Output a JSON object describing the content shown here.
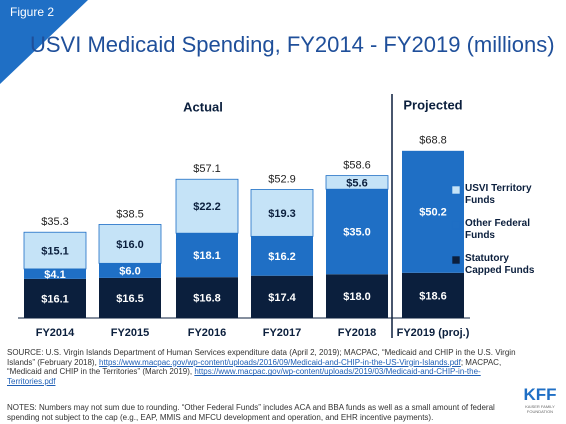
{
  "chart_data": {
    "type": "stacked-bar",
    "figure_label": "Figure 2",
    "title": "USVI Medicaid Spending, FY2014 - FY2019 (millions)",
    "annotations": [
      "Actual",
      "Projected"
    ],
    "categories": [
      "FY2014",
      "FY2015",
      "FY2016",
      "FY2017",
      "FY2018",
      "FY2019 (proj.)"
    ],
    "series": [
      {
        "name": "Statutory Capped Funds",
        "color": "#0b1f3d",
        "label_color": "#ffffff",
        "values": [
          16.1,
          16.5,
          16.8,
          17.4,
          18.0,
          18.6
        ],
        "value_labels": [
          "$16.1",
          "$16.5",
          "$16.8",
          "$17.4",
          "$18.0",
          "$18.6"
        ]
      },
      {
        "name": "Other Federal Funds",
        "color": "#1f6fc5",
        "label_color": "#ffffff",
        "values": [
          4.1,
          6.0,
          18.1,
          16.2,
          35.0,
          50.2
        ],
        "value_labels": [
          "$4.1",
          "$6.0",
          "$18.1",
          "$16.2",
          "$35.0",
          "$50.2"
        ]
      },
      {
        "name": "USVI Territory Funds",
        "color": "#c5e3f7",
        "label_color": "#0b1f3d",
        "values": [
          15.1,
          16.0,
          22.2,
          19.3,
          5.6,
          null
        ],
        "value_labels": [
          "$15.1",
          "$16.0",
          "$22.2",
          "$19.3",
          "$5.6",
          null
        ]
      }
    ],
    "totals": [
      35.3,
      38.5,
      57.1,
      52.9,
      58.6,
      68.8
    ],
    "total_labels": [
      "$35.3",
      "$38.5",
      "$57.1",
      "$52.9",
      "$58.6",
      "$68.8"
    ],
    "source": [
      "SOURCE: U.S. Virgin Islands Department of Human Services expenditure data (April 2, 2019); MACPAC, “Medicaid and CHIP in the U.S. Virgin Islands” (February 2018), ",
      "https://www.macpac.gov/wp-content/uploads/2016/09/Medicaid-and-CHIP-in-the-US-Virgin-Islands.pdf",
      "; MACPAC, “Medicaid and CHIP in the Territories” (March 2019), ",
      "https://www.macpac.gov/wp-content/uploads/2019/03/Medicaid-and-CHIP-in-the-Territories.pdf"
    ],
    "notes": "NOTES: Numbers may not sum due to rounding. “Other Federal Funds” includes ACA and BBA funds as well as a small amount of federal spending not subject to the cap (e.g., EAP, MMIS and MFCU development and operation, and EHR incentive payments).",
    "logo": {
      "mark": "KFF",
      "name": "KAISER FAMILY FOUNDATION"
    }
  }
}
